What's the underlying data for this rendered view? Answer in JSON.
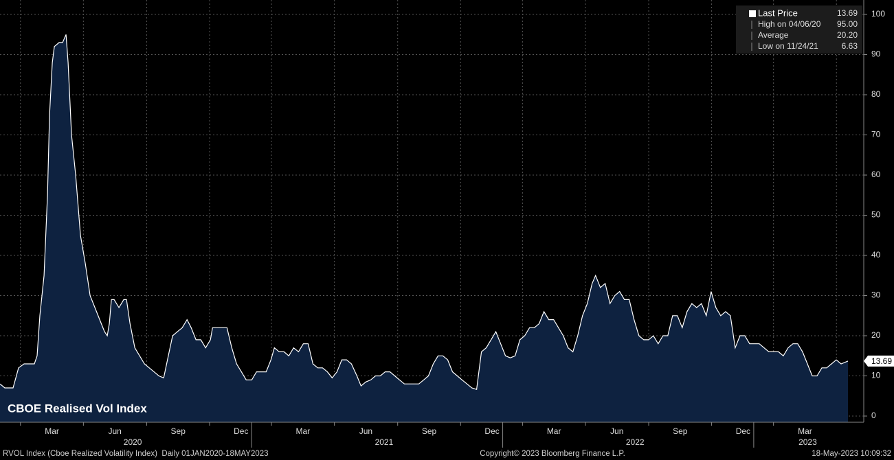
{
  "chart_data": {
    "type": "area",
    "title": "CBOE Realised Vol Index",
    "x": [
      "2020-01-01",
      "2020-01-08",
      "2020-01-20",
      "2020-01-28",
      "2020-02-05",
      "2020-02-20",
      "2020-02-24",
      "2020-02-28",
      "2020-03-05",
      "2020-03-10",
      "2020-03-13",
      "2020-03-17",
      "2020-03-20",
      "2020-03-27",
      "2020-04-01",
      "2020-04-06",
      "2020-04-09",
      "2020-04-14",
      "2020-04-20",
      "2020-04-27",
      "2020-05-04",
      "2020-05-11",
      "2020-05-18",
      "2020-05-25",
      "2020-06-01",
      "2020-06-05",
      "2020-06-08",
      "2020-06-11",
      "2020-06-15",
      "2020-06-22",
      "2020-06-29",
      "2020-07-03",
      "2020-07-08",
      "2020-07-15",
      "2020-07-22",
      "2020-07-29",
      "2020-08-05",
      "2020-08-12",
      "2020-08-19",
      "2020-08-26",
      "2020-09-03",
      "2020-09-08",
      "2020-09-15",
      "2020-09-22",
      "2020-09-29",
      "2020-10-05",
      "2020-10-12",
      "2020-10-19",
      "2020-10-26",
      "2020-11-02",
      "2020-11-05",
      "2020-11-12",
      "2020-11-19",
      "2020-11-26",
      "2020-12-03",
      "2020-12-10",
      "2020-12-17",
      "2020-12-24",
      "2021-01-01",
      "2021-01-08",
      "2021-01-15",
      "2021-01-22",
      "2021-01-29",
      "2021-02-03",
      "2021-02-10",
      "2021-02-17",
      "2021-02-24",
      "2021-03-03",
      "2021-03-10",
      "2021-03-17",
      "2021-03-24",
      "2021-03-31",
      "2021-04-07",
      "2021-04-14",
      "2021-04-21",
      "2021-04-28",
      "2021-05-05",
      "2021-05-12",
      "2021-05-19",
      "2021-05-26",
      "2021-06-03",
      "2021-06-09",
      "2021-06-16",
      "2021-06-23",
      "2021-06-30",
      "2021-07-07",
      "2021-07-14",
      "2021-07-21",
      "2021-07-28",
      "2021-08-04",
      "2021-08-11",
      "2021-08-18",
      "2021-08-25",
      "2021-09-01",
      "2021-09-08",
      "2021-09-15",
      "2021-09-22",
      "2021-09-29",
      "2021-10-06",
      "2021-10-13",
      "2021-10-20",
      "2021-10-27",
      "2021-11-03",
      "2021-11-10",
      "2021-11-17",
      "2021-11-24",
      "2021-12-01",
      "2021-12-08",
      "2021-12-15",
      "2021-12-22",
      "2021-12-29",
      "2022-01-05",
      "2022-01-12",
      "2022-01-19",
      "2022-01-26",
      "2022-02-02",
      "2022-02-09",
      "2022-02-16",
      "2022-02-23",
      "2022-03-02",
      "2022-03-09",
      "2022-03-16",
      "2022-03-23",
      "2022-03-30",
      "2022-04-06",
      "2022-04-13",
      "2022-04-20",
      "2022-04-27",
      "2022-05-04",
      "2022-05-11",
      "2022-05-16",
      "2022-05-23",
      "2022-05-30",
      "2022-06-06",
      "2022-06-13",
      "2022-06-20",
      "2022-06-27",
      "2022-07-04",
      "2022-07-11",
      "2022-07-18",
      "2022-07-25",
      "2022-08-01",
      "2022-08-08",
      "2022-08-15",
      "2022-08-22",
      "2022-08-29",
      "2022-09-05",
      "2022-09-12",
      "2022-09-19",
      "2022-09-26",
      "2022-10-03",
      "2022-10-10",
      "2022-10-17",
      "2022-10-24",
      "2022-10-31",
      "2022-11-07",
      "2022-11-14",
      "2022-11-21",
      "2022-11-28",
      "2022-12-05",
      "2022-12-12",
      "2022-12-19",
      "2022-12-26",
      "2023-01-02",
      "2023-01-09",
      "2023-01-16",
      "2023-01-23",
      "2023-01-30",
      "2023-02-06",
      "2023-02-13",
      "2023-02-20",
      "2023-02-27",
      "2023-03-06",
      "2023-03-13",
      "2023-03-20",
      "2023-03-27",
      "2023-04-03",
      "2023-04-10",
      "2023-04-17",
      "2023-04-24",
      "2023-05-01",
      "2023-05-08",
      "2023-05-18"
    ],
    "series": [
      {
        "name": "Last Price",
        "color": "#ffffff",
        "fill": "#0e2240",
        "values": [
          8,
          7,
          7,
          12,
          13,
          13,
          15,
          25,
          35,
          55,
          75,
          88,
          92,
          93,
          93,
          95,
          88,
          70,
          60,
          45,
          38,
          30,
          27,
          24,
          21,
          20,
          23,
          29,
          29,
          27,
          29,
          29,
          23,
          17,
          15,
          13,
          12,
          11,
          10,
          9.5,
          16,
          20,
          21,
          22,
          24,
          22,
          19,
          19,
          17,
          19,
          22,
          22,
          22,
          22,
          17,
          13,
          11,
          9,
          9,
          11,
          11,
          11,
          14,
          17,
          16,
          16,
          15,
          17,
          16,
          18,
          18,
          13,
          12,
          12,
          11,
          9.5,
          11,
          14,
          14,
          13,
          10,
          7.5,
          8.5,
          9,
          10,
          10,
          11,
          11,
          10,
          9,
          8,
          8,
          8,
          8,
          9,
          10,
          13,
          15,
          15,
          14,
          11,
          10,
          9,
          8,
          7,
          6.63,
          16,
          17,
          19,
          21,
          18,
          15,
          14.5,
          15,
          19,
          20,
          22,
          22,
          23,
          26,
          24,
          24,
          22,
          20,
          17,
          16,
          20,
          25,
          28,
          33,
          35,
          32,
          33,
          28,
          30,
          31,
          29,
          29,
          24,
          20,
          19,
          19,
          20,
          18,
          20,
          20,
          25,
          25,
          22,
          26,
          28,
          27,
          28,
          25,
          31,
          27,
          25,
          26,
          25,
          17,
          20,
          20,
          18,
          18,
          18,
          17,
          16,
          16,
          16,
          15,
          17,
          18,
          18,
          16,
          13,
          10,
          10,
          12,
          12,
          13,
          14,
          13,
          13.69
        ]
      }
    ],
    "xlim": [
      "2020-01-01",
      "2023-05-18"
    ],
    "xticks": [
      {
        "value": "2020-03",
        "label": "Mar"
      },
      {
        "value": "2020-06",
        "label": "Jun"
      },
      {
        "value": "2020-09",
        "label": "Sep"
      },
      {
        "value": "2020-12",
        "label": "Dec"
      },
      {
        "value": "2021-03",
        "label": "Mar"
      },
      {
        "value": "2021-06",
        "label": "Jun"
      },
      {
        "value": "2021-09",
        "label": "Sep"
      },
      {
        "value": "2021-12",
        "label": "Dec"
      },
      {
        "value": "2022-03",
        "label": "Mar"
      },
      {
        "value": "2022-06",
        "label": "Jun"
      },
      {
        "value": "2022-09",
        "label": "Sep"
      },
      {
        "value": "2022-12",
        "label": "Dec"
      },
      {
        "value": "2023-03",
        "label": "Mar"
      }
    ],
    "years": [
      "2020",
      "2021",
      "2022",
      "2023"
    ],
    "ylim": [
      0,
      100
    ],
    "yticks": [
      0,
      10,
      20,
      30,
      40,
      50,
      60,
      70,
      80,
      90,
      100
    ],
    "grid": true,
    "last_label": "13.69",
    "legend": [
      {
        "label": "Last Price",
        "value": "13.69"
      },
      {
        "label": "High on 04/06/20",
        "value": "95.00"
      },
      {
        "label": "Average",
        "value": "20.20"
      },
      {
        "label": "Low on 11/24/21",
        "value": "6.63"
      }
    ],
    "footer": {
      "left": "RVOL Index (Cboe Realized Volatility Index)  Daily 01JAN2020-18MAY2023",
      "center": "Copyright© 2023 Bloomberg Finance L.P.",
      "right": "18-May-2023 10:09:32"
    }
  }
}
